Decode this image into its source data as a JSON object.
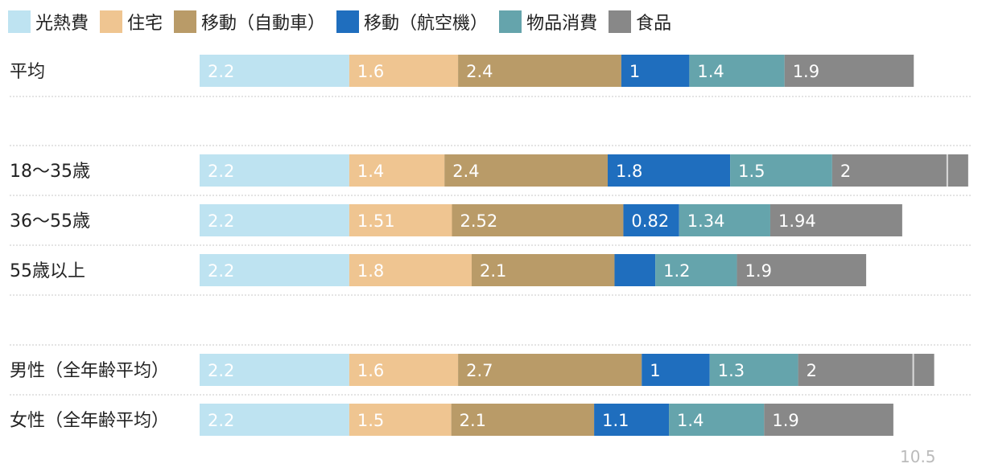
{
  "chart_data": {
    "type": "stacked-bar-horizontal",
    "legend_position": "top-left",
    "series": [
      {
        "name": "光熱費",
        "color": "#bee3f1"
      },
      {
        "name": "住宅",
        "color": "#efc591"
      },
      {
        "name": "移動（自動車）",
        "color": "#b99b68"
      },
      {
        "name": "移動（航空機）",
        "color": "#1f6ebe"
      },
      {
        "name": "物品消費",
        "color": "#65a4ac"
      },
      {
        "name": "食品",
        "color": "#888888"
      }
    ],
    "rows": [
      {
        "label": "平均",
        "values": [
          2.2,
          1.6,
          2.4,
          1,
          1.4,
          1.9
        ],
        "labels": [
          "2.2",
          "1.6",
          "2.4",
          "1",
          "1.4",
          "1.9"
        ]
      },
      {
        "label": "18〜35歳",
        "values": [
          2.2,
          1.4,
          2.4,
          1.8,
          1.5,
          2.0
        ],
        "labels": [
          "2.2",
          "1.4",
          "2.4",
          "1.8",
          "1.5",
          "2"
        ],
        "overflow": true
      },
      {
        "label": "36〜55歳",
        "values": [
          2.2,
          1.51,
          2.52,
          0.82,
          1.34,
          1.94
        ],
        "labels": [
          "2.2",
          "1.51",
          "2.52",
          "0.82",
          "1.34",
          "1.94"
        ]
      },
      {
        "label": "55歳以上",
        "values": [
          2.2,
          1.8,
          2.1,
          0.6,
          1.2,
          1.9
        ],
        "labels": [
          "2.2",
          "1.8",
          "2.1",
          "",
          "1.2",
          "1.9"
        ]
      },
      {
        "label": "男性（全年齢平均）",
        "values": [
          2.2,
          1.6,
          2.7,
          1,
          1.3,
          2.0
        ],
        "labels": [
          "2.2",
          "1.6",
          "2.7",
          "1",
          "1.3",
          "2"
        ],
        "overflow": true
      },
      {
        "label": "女性（全年齢平均）",
        "values": [
          2.2,
          1.5,
          2.1,
          1.1,
          1.4,
          1.9
        ],
        "labels": [
          "2.2",
          "1.5",
          "2.1",
          "1.1",
          "1.4",
          "1.9"
        ]
      }
    ],
    "axis_max": 10.5,
    "axis_max_label": "10.5"
  }
}
